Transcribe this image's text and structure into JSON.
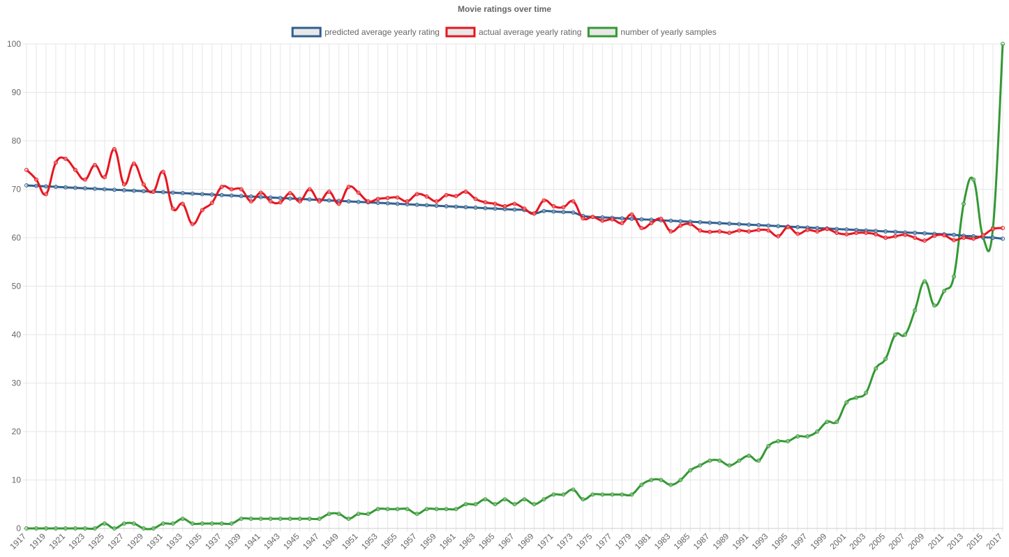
{
  "chart_data": {
    "type": "line",
    "title": "Movie ratings over time",
    "xlabel": "",
    "ylabel": "",
    "ylim": [
      0,
      100
    ],
    "y_ticks": [
      0,
      10,
      20,
      30,
      40,
      50,
      60,
      70,
      80,
      90,
      100
    ],
    "x_tick_labels": [
      "1917",
      "1919",
      "1921",
      "1923",
      "1925",
      "1927",
      "1929",
      "1931",
      "1933",
      "1935",
      "1937",
      "1939",
      "1941",
      "1943",
      "1945",
      "1947",
      "1949",
      "1951",
      "1953",
      "1955",
      "1957",
      "1959",
      "1961",
      "1963",
      "1965",
      "1967",
      "1969",
      "1971",
      "1973",
      "1975",
      "1977",
      "1979",
      "1981",
      "1983",
      "1985",
      "1987",
      "1989",
      "1991",
      "1993",
      "1995",
      "1997",
      "1999",
      "2001",
      "2003",
      "2005",
      "2007",
      "2009",
      "2011",
      "2013",
      "2015",
      "2017"
    ],
    "x": [
      1917,
      1918,
      1919,
      1920,
      1921,
      1922,
      1923,
      1924,
      1925,
      1926,
      1927,
      1928,
      1929,
      1930,
      1931,
      1932,
      1933,
      1934,
      1935,
      1936,
      1937,
      1938,
      1939,
      1940,
      1941,
      1942,
      1943,
      1944,
      1945,
      1946,
      1947,
      1948,
      1949,
      1950,
      1951,
      1952,
      1953,
      1954,
      1955,
      1956,
      1957,
      1958,
      1959,
      1960,
      1961,
      1962,
      1963,
      1964,
      1965,
      1966,
      1967,
      1968,
      1969,
      1970,
      1971,
      1972,
      1973,
      1974,
      1975,
      1976,
      1977,
      1978,
      1979,
      1980,
      1981,
      1982,
      1983,
      1984,
      1985,
      1986,
      1987,
      1988,
      1989,
      1990,
      1991,
      1992,
      1993,
      1994,
      1995,
      1996,
      1997,
      1998,
      1999,
      2000,
      2001,
      2002,
      2003,
      2004,
      2005,
      2006,
      2007,
      2008,
      2009,
      2010,
      2011,
      2012,
      2013,
      2014,
      2015,
      2016,
      2017
    ],
    "grid": true,
    "legend_position": "top",
    "series": [
      {
        "name": "predicted average yearly rating",
        "color": "#2f5f8f",
        "values": [
          70.8,
          70.7,
          70.6,
          70.5,
          70.4,
          70.3,
          70.2,
          70.1,
          70.0,
          69.9,
          69.8,
          69.7,
          69.6,
          69.5,
          69.4,
          69.3,
          69.2,
          69.1,
          69.0,
          68.9,
          68.8,
          68.7,
          68.6,
          68.5,
          68.4,
          68.3,
          68.2,
          68.1,
          68.0,
          67.9,
          67.8,
          67.7,
          67.6,
          67.5,
          67.4,
          67.3,
          67.2,
          67.1,
          67.0,
          66.9,
          66.8,
          66.7,
          66.6,
          66.5,
          66.4,
          66.3,
          66.2,
          66.1,
          66.0,
          65.9,
          65.8,
          65.7,
          65.0,
          65.5,
          65.4,
          65.3,
          65.2,
          64.5,
          64.3,
          64.2,
          64.1,
          64.0,
          63.9,
          63.8,
          63.7,
          63.6,
          63.5,
          63.4,
          63.3,
          63.2,
          63.1,
          63.0,
          62.9,
          62.8,
          62.7,
          62.6,
          62.5,
          62.4,
          62.3,
          62.2,
          62.1,
          62.0,
          61.9,
          61.8,
          61.7,
          61.6,
          61.5,
          61.4,
          61.3,
          61.2,
          61.1,
          61.0,
          60.9,
          60.8,
          60.7,
          60.6,
          60.4,
          60.3,
          60.1,
          60.0,
          59.8
        ]
      },
      {
        "name": "actual average yearly rating",
        "color": "#e8151f",
        "values": [
          74.0,
          72.0,
          69.0,
          75.5,
          76.3,
          74.0,
          72.0,
          75.0,
          72.5,
          78.3,
          71.0,
          75.3,
          71.0,
          69.5,
          73.6,
          66.0,
          67.0,
          62.8,
          65.7,
          67.2,
          70.5,
          70.0,
          70.0,
          67.5,
          69.3,
          67.5,
          67.3,
          69.2,
          67.5,
          70.0,
          67.5,
          69.5,
          67.0,
          70.5,
          69.3,
          67.5,
          68.0,
          68.2,
          68.3,
          67.5,
          69.0,
          68.5,
          67.5,
          68.8,
          68.6,
          69.5,
          68.0,
          67.3,
          67.0,
          66.5,
          67.0,
          66.0,
          65.0,
          67.7,
          66.5,
          66.3,
          67.5,
          64.0,
          64.3,
          63.5,
          63.8,
          63.0,
          64.8,
          62.0,
          63.0,
          63.9,
          61.3,
          62.5,
          62.8,
          61.5,
          61.2,
          61.3,
          61.0,
          61.5,
          61.3,
          61.6,
          61.5,
          60.3,
          62.2,
          60.8,
          61.6,
          61.3,
          61.8,
          61.0,
          60.7,
          61.0,
          61.0,
          60.7,
          60.0,
          60.3,
          60.6,
          60.0,
          59.4,
          60.4,
          60.5,
          59.5,
          60.0,
          59.8,
          60.5,
          61.8,
          62.0
        ]
      },
      {
        "name": "number of yearly samples",
        "color": "#339933",
        "values": [
          0,
          0,
          0,
          0,
          0,
          0,
          0,
          0,
          1,
          0,
          1,
          1,
          0,
          0,
          1,
          1,
          2,
          1,
          1,
          1,
          1,
          1,
          2,
          2,
          2,
          2,
          2,
          2,
          2,
          2,
          2,
          3,
          3,
          2,
          3,
          3,
          4,
          4,
          4,
          4,
          3,
          4,
          4,
          4,
          4,
          5,
          5,
          6,
          5,
          6,
          5,
          6,
          5,
          6,
          7,
          7,
          8,
          6,
          7,
          7,
          7,
          7,
          7,
          9,
          10,
          10,
          9,
          10,
          12,
          13,
          14,
          14,
          13,
          14,
          15,
          14,
          17,
          18,
          18,
          19,
          19,
          20,
          22,
          22,
          26,
          27,
          28,
          33,
          35,
          40,
          40,
          45,
          51,
          46,
          49,
          52,
          67,
          72,
          60,
          62,
          100
        ]
      }
    ]
  }
}
